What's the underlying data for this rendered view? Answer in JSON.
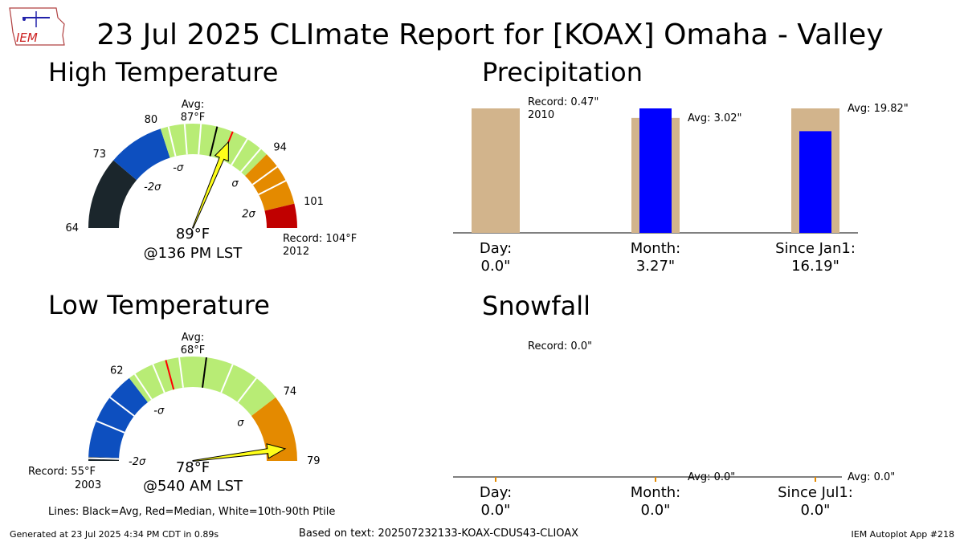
{
  "title": "23 Jul 2025 CLImate Report for [KOAX] Omaha - Valley",
  "logo_text": "IEM",
  "footer": {
    "generated": "Generated at 23 Jul 2025 4:34 PM CDT in 0.89s",
    "based_on": "Based on text: 202507232133-KOAX-CDUS43-CLIOAX",
    "app": "IEM Autoplot App #218"
  },
  "legend_note": "Lines: Black=Avg, Red=Median, White=10th-90th Ptile",
  "colors": {
    "below_low": "#1b262c",
    "below": "#0d4fbf",
    "normal": "#b8ec75",
    "above": "#e48a00",
    "above_high": "#c00000",
    "needle": "#ffff1a",
    "bar_avg": "#d2b48c",
    "bar_obs": "#0000ff"
  },
  "chart_data": [
    {
      "type": "gauge",
      "title": "High Temperature",
      "unit": "°F",
      "range": [
        64,
        104
      ],
      "avg_label": "Avg:",
      "avg_value_label": "87°F",
      "avg": 87,
      "median": 89,
      "observed": 89,
      "observed_label": "89°F",
      "time_label": "@136 PM LST",
      "record_label": "Record: 104°F",
      "record_year": "2012",
      "bands": [
        {
          "from": 64,
          "to": 73,
          "color": "below_low"
        },
        {
          "from": 73,
          "to": 80,
          "color": "below"
        },
        {
          "from": 80,
          "to": 94,
          "color": "normal"
        },
        {
          "from": 94,
          "to": 101,
          "color": "above"
        },
        {
          "from": 101,
          "to": 104,
          "color": "above_high"
        }
      ],
      "percentile_lines": [
        81,
        83,
        85,
        91,
        93,
        96,
        98
      ],
      "tick_labels": [
        {
          "value": 64,
          "text": "64"
        },
        {
          "value": 73,
          "text": "73"
        },
        {
          "value": 80,
          "text": "80"
        },
        {
          "value": 94,
          "text": "94"
        },
        {
          "value": 101,
          "text": "101"
        }
      ],
      "sigma_labels": [
        {
          "value": 80,
          "text": "-σ"
        },
        {
          "value": 73,
          "text": "-2σ"
        },
        {
          "value": 94,
          "text": "σ"
        },
        {
          "value": 101,
          "text": "2σ"
        }
      ]
    },
    {
      "type": "gauge",
      "title": "Low Temperature",
      "unit": "°F",
      "range": [
        55,
        79
      ],
      "avg_label": "Avg:",
      "avg_value_label": "68°F",
      "avg": 68,
      "median": 65,
      "observed": 78,
      "observed_label": "78°F",
      "time_label": "@540 AM LST",
      "record_label": "Record: 55°F",
      "record_year": "2003",
      "bands": [
        {
          "from": 55,
          "to": 55.3,
          "color": "below_low"
        },
        {
          "from": 55.3,
          "to": 62,
          "color": "below"
        },
        {
          "from": 62,
          "to": 74,
          "color": "normal"
        },
        {
          "from": 74,
          "to": 79,
          "color": "above"
        }
      ],
      "percentile_lines": [
        55.2,
        58,
        60,
        62.5,
        64,
        66,
        70,
        72
      ],
      "tick_labels": [
        {
          "value": 62,
          "text": "62"
        },
        {
          "value": 74,
          "text": "74"
        },
        {
          "value": 79,
          "text": "79"
        }
      ],
      "sigma_labels": [
        {
          "value": 62,
          "text": "-σ"
        },
        {
          "value": 55,
          "text": "-2σ"
        },
        {
          "value": 74,
          "text": "σ"
        }
      ]
    },
    {
      "type": "bar",
      "title": "Precipitation",
      "categories": [
        "Day:",
        "Month:",
        "Since Jan1:"
      ],
      "observed_labels": [
        "0.0\"",
        "3.27\"",
        "16.19\""
      ],
      "background": [
        0.47,
        3.02,
        19.82
      ],
      "background_kind": [
        "record",
        "avg",
        "avg"
      ],
      "observed": [
        0.0,
        3.27,
        16.19
      ],
      "annotations": [
        "Record: 0.47\"",
        "Avg: 3.02\"",
        "Avg: 19.82\""
      ],
      "annotation_year": "2010"
    },
    {
      "type": "bar",
      "title": "Snowfall",
      "categories": [
        "Day:",
        "Month:",
        "Since Jul1:"
      ],
      "observed_labels": [
        "0.0\"",
        "0.0\"",
        "0.0\""
      ],
      "background": [
        0.0,
        0.0,
        0.0
      ],
      "observed": [
        0.0,
        0.0,
        0.0
      ],
      "annotations": [
        "Record: 0.0\"",
        "Avg: 0.0\"",
        "Avg: 0.0\""
      ]
    }
  ]
}
